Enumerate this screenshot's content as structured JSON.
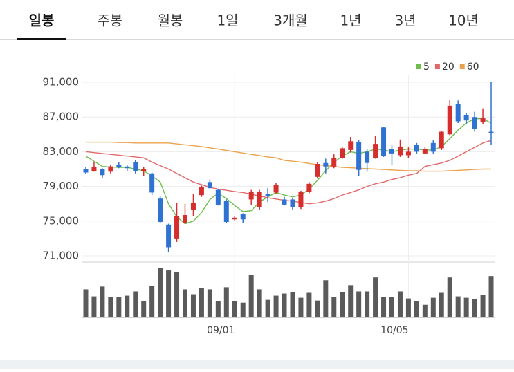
{
  "tabs": {
    "items": [
      "일봉",
      "주봉",
      "월봉",
      "1일",
      "3개월",
      "1년",
      "3년",
      "10년"
    ],
    "selected": 0
  },
  "chart_data": {
    "type": "candlestick",
    "categories": [
      null,
      null,
      null,
      null,
      null,
      null,
      null,
      null,
      null,
      null,
      null,
      null,
      null,
      null,
      null,
      null,
      null,
      null,
      "09/01",
      null,
      null,
      null,
      null,
      null,
      null,
      null,
      null,
      null,
      null,
      null,
      null,
      null,
      null,
      null,
      null,
      null,
      null,
      null,
      null,
      "10/05",
      null,
      null,
      null,
      null,
      null,
      null,
      null,
      null,
      null,
      null
    ],
    "open": [
      81000,
      80800,
      81000,
      80700,
      81500,
      81300,
      81800,
      80800,
      80500,
      77600,
      74600,
      73000,
      74800,
      76300,
      78000,
      79500,
      78600,
      77300,
      75200,
      75800,
      77500,
      76600,
      78100,
      78300,
      77500,
      77500,
      76600,
      78400,
      80100,
      81700,
      81300,
      82300,
      83200,
      84100,
      83000,
      82300,
      85800,
      83300,
      82600,
      82600,
      83800,
      82800,
      84000,
      83400,
      85000,
      88500,
      87200,
      87000,
      86400,
      85300
    ],
    "high": [
      81200,
      81800,
      81100,
      81500,
      81800,
      81500,
      82000,
      81200,
      80600,
      77900,
      74700,
      77100,
      77000,
      78100,
      79100,
      79800,
      78700,
      77500,
      75600,
      75900,
      78600,
      78600,
      78800,
      79400,
      77800,
      77700,
      78500,
      79500,
      81800,
      82200,
      82700,
      83600,
      84700,
      84300,
      83300,
      84800,
      85900,
      83800,
      84400,
      83500,
      84000,
      83500,
      84300,
      85400,
      89000,
      88900,
      87500,
      87600,
      88000,
      91000
    ],
    "low": [
      80400,
      80700,
      80000,
      80500,
      81100,
      80800,
      80500,
      80200,
      78000,
      74800,
      71400,
      72600,
      74700,
      75600,
      77800,
      78700,
      76800,
      74800,
      75000,
      74800,
      76900,
      76300,
      77200,
      78100,
      76800,
      76300,
      76400,
      78200,
      79900,
      80500,
      81100,
      82200,
      82900,
      80200,
      80700,
      82200,
      82400,
      81500,
      82400,
      82300,
      82800,
      82700,
      82800,
      83200,
      84900,
      86300,
      86200,
      85300,
      86200,
      83800
    ],
    "close": [
      80600,
      81200,
      80300,
      81300,
      81200,
      81100,
      80800,
      81000,
      78300,
      74900,
      72000,
      75600,
      75700,
      77100,
      78900,
      78800,
      76900,
      74900,
      75400,
      75200,
      78400,
      78400,
      77900,
      79200,
      76900,
      76600,
      78400,
      79300,
      81600,
      81300,
      82300,
      83400,
      84200,
      80900,
      81700,
      83900,
      82500,
      82800,
      83600,
      83000,
      83000,
      83300,
      83000,
      85300,
      88300,
      86500,
      86600,
      85600,
      86900,
      85200
    ],
    "up_color": "#d62d2d",
    "down_color": "#2f73d2",
    "series": [
      {
        "name": "5",
        "color": "#6dbf4b",
        "values": [
          82500,
          81900,
          81300,
          81250,
          81200,
          81200,
          81000,
          80800,
          80200,
          79500,
          77000,
          75500,
          74700,
          75000,
          76000,
          77500,
          78200,
          77600,
          76800,
          76100,
          76200,
          77200,
          77800,
          78300,
          78000,
          77800,
          78000,
          78700,
          79700,
          80800,
          81800,
          82500,
          83000,
          82800,
          83000,
          83300,
          83200,
          83000,
          83200,
          83300,
          83300,
          83200,
          83200,
          83600,
          84500,
          85500,
          86300,
          86800,
          86800,
          86300
        ]
      },
      {
        "name": "20",
        "color": "#e06a6a",
        "values": [
          83000,
          82900,
          82800,
          82700,
          82600,
          82500,
          82400,
          82300,
          81800,
          81400,
          81000,
          80500,
          80000,
          79500,
          79200,
          78900,
          78700,
          78550,
          78400,
          78300,
          78100,
          77900,
          77700,
          77550,
          77400,
          77300,
          77150,
          77000,
          77100,
          77300,
          77600,
          78000,
          78300,
          78600,
          79000,
          79300,
          79500,
          79800,
          80000,
          80300,
          80500,
          81300,
          81500,
          81700,
          82000,
          82500,
          83000,
          83500,
          84000,
          84300
        ]
      },
      {
        "name": "60",
        "color": "#eba24c",
        "values": [
          84100,
          84100,
          84100,
          84100,
          84050,
          84050,
          84000,
          84000,
          84000,
          84000,
          84000,
          83900,
          83800,
          83700,
          83600,
          83450,
          83300,
          83150,
          83000,
          82850,
          82700,
          82550,
          82400,
          82300,
          82000,
          81900,
          81800,
          81650,
          81500,
          81400,
          81300,
          81200,
          81150,
          81100,
          81050,
          81000,
          80950,
          80900,
          80850,
          80800,
          80800,
          80750,
          80750,
          80750,
          80800,
          80850,
          80900,
          80950,
          81000,
          81000
        ]
      }
    ],
    "volume": {
      "color": "#5a5a5a",
      "values": [
        40,
        30,
        44,
        29,
        29,
        31,
        37,
        23,
        45,
        71,
        67,
        65,
        40,
        33,
        42,
        40,
        23,
        43,
        23,
        21,
        61,
        40,
        25,
        31,
        34,
        36,
        28,
        35,
        24,
        53,
        29,
        36,
        46,
        37,
        37,
        57,
        29,
        29,
        37,
        27,
        23,
        18,
        28,
        35,
        57,
        30,
        28,
        26,
        32,
        59
      ]
    },
    "ylim": [
      71000,
      91000
    ],
    "yticks": [
      {
        "value": 71000,
        "label": "71,000"
      },
      {
        "value": 75000,
        "label": "75,000"
      },
      {
        "value": 79000,
        "label": "79,000"
      },
      {
        "value": 83000,
        "label": "83,000"
      },
      {
        "value": 87000,
        "label": "87,000"
      },
      {
        "value": 91000,
        "label": "91,000"
      }
    ],
    "grid": true,
    "legend": "top-right"
  }
}
